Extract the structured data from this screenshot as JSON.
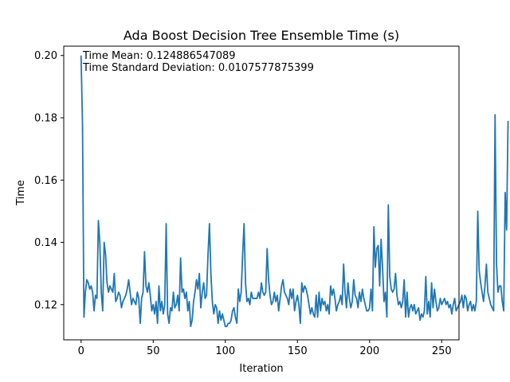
{
  "chart_data": {
    "type": "line",
    "title": "Ada Boost Decision Tree Ensemble Time (s)",
    "xlabel": "Iteration",
    "ylabel": "Time",
    "xlim": [
      -12,
      262
    ],
    "ylim": [
      0.1087,
      0.203
    ],
    "x_ticks": [
      0,
      50,
      100,
      150,
      200,
      250
    ],
    "x_tick_labels": [
      "0",
      "50",
      "100",
      "150",
      "200",
      "250"
    ],
    "y_ticks": [
      0.12,
      0.14,
      0.16,
      0.18,
      0.2
    ],
    "y_tick_labels": [
      "0.12",
      "0.14",
      "0.16",
      "0.18",
      "0.20"
    ],
    "grid": false,
    "line_color": "#1f77b4",
    "annotations": [
      "Time Mean: 0.124886547089",
      "Time Standard Deviation: 0.0107577875399"
    ],
    "series": [
      {
        "x_start": 0,
        "x_step": 1,
        "values": [
          0.2,
          0.178,
          0.116,
          0.124,
          0.128,
          0.127,
          0.125,
          0.126,
          0.124,
          0.118,
          0.123,
          0.122,
          0.147,
          0.14,
          0.124,
          0.118,
          0.14,
          0.136,
          0.127,
          0.124,
          0.126,
          0.125,
          0.124,
          0.13,
          0.121,
          0.122,
          0.124,
          0.123,
          0.119,
          0.121,
          0.122,
          0.123,
          0.125,
          0.128,
          0.124,
          0.12,
          0.122,
          0.121,
          0.12,
          0.124,
          0.122,
          0.114,
          0.122,
          0.124,
          0.137,
          0.126,
          0.124,
          0.127,
          0.123,
          0.118,
          0.12,
          0.117,
          0.121,
          0.114,
          0.126,
          0.118,
          0.121,
          0.117,
          0.12,
          0.146,
          0.117,
          0.114,
          0.119,
          0.118,
          0.124,
          0.119,
          0.12,
          0.123,
          0.118,
          0.135,
          0.124,
          0.125,
          0.122,
          0.124,
          0.118,
          0.121,
          0.113,
          0.115,
          0.121,
          0.124,
          0.128,
          0.125,
          0.13,
          0.119,
          0.124,
          0.127,
          0.122,
          0.123,
          0.136,
          0.146,
          0.13,
          0.121,
          0.117,
          0.12,
          0.119,
          0.114,
          0.118,
          0.115,
          0.117,
          0.115,
          0.113,
          0.113,
          0.114,
          0.114,
          0.115,
          0.118,
          0.119,
          0.116,
          0.114,
          0.125,
          0.121,
          0.124,
          0.136,
          0.146,
          0.127,
          0.121,
          0.122,
          0.12,
          0.124,
          0.122,
          0.122,
          0.122,
          0.122,
          0.124,
          0.122,
          0.127,
          0.124,
          0.123,
          0.124,
          0.138,
          0.128,
          0.123,
          0.12,
          0.121,
          0.124,
          0.121,
          0.123,
          0.118,
          0.122,
          0.126,
          0.128,
          0.124,
          0.123,
          0.122,
          0.12,
          0.125,
          0.122,
          0.125,
          0.118,
          0.121,
          0.123,
          0.12,
          0.114,
          0.127,
          0.124,
          0.126,
          0.125,
          0.123,
          0.12,
          0.117,
          0.119,
          0.117,
          0.116,
          0.123,
          0.116,
          0.124,
          0.118,
          0.122,
          0.12,
          0.121,
          0.118,
          0.12,
          0.117,
          0.126,
          0.123,
          0.125,
          0.122,
          0.118,
          0.12,
          0.121,
          0.123,
          0.12,
          0.133,
          0.124,
          0.119,
          0.127,
          0.122,
          0.119,
          0.121,
          0.128,
          0.123,
          0.122,
          0.119,
          0.124,
          0.121,
          0.125,
          0.122,
          0.12,
          0.118,
          0.118,
          0.119,
          0.125,
          0.118,
          0.145,
          0.132,
          0.138,
          0.139,
          0.126,
          0.141,
          0.132,
          0.121,
          0.124,
          0.116,
          0.152,
          0.129,
          0.125,
          0.124,
          0.125,
          0.13,
          0.123,
          0.12,
          0.121,
          0.119,
          0.121,
          0.128,
          0.116,
          0.124,
          0.116,
          0.119,
          0.12,
          0.118,
          0.12,
          0.117,
          0.118,
          0.119,
          0.115,
          0.117,
          0.116,
          0.118,
          0.129,
          0.117,
          0.121,
          0.116,
          0.127,
          0.119,
          0.125,
          0.121,
          0.118,
          0.119,
          0.122,
          0.12,
          0.121,
          0.122,
          0.12,
          0.121,
          0.119,
          0.12,
          0.117,
          0.12,
          0.122,
          0.118,
          0.119,
          0.12,
          0.121,
          0.123,
          0.119,
          0.123,
          0.122,
          0.118,
          0.12,
          0.121,
          0.118,
          0.12,
          0.118,
          0.121,
          0.15,
          0.131,
          0.127,
          0.124,
          0.121,
          0.126,
          0.133,
          0.124,
          0.122,
          0.12,
          0.119,
          0.118,
          0.181,
          0.133,
          0.124,
          0.126,
          0.126,
          0.121,
          0.118,
          0.156,
          0.144,
          0.179
        ]
      }
    ]
  }
}
